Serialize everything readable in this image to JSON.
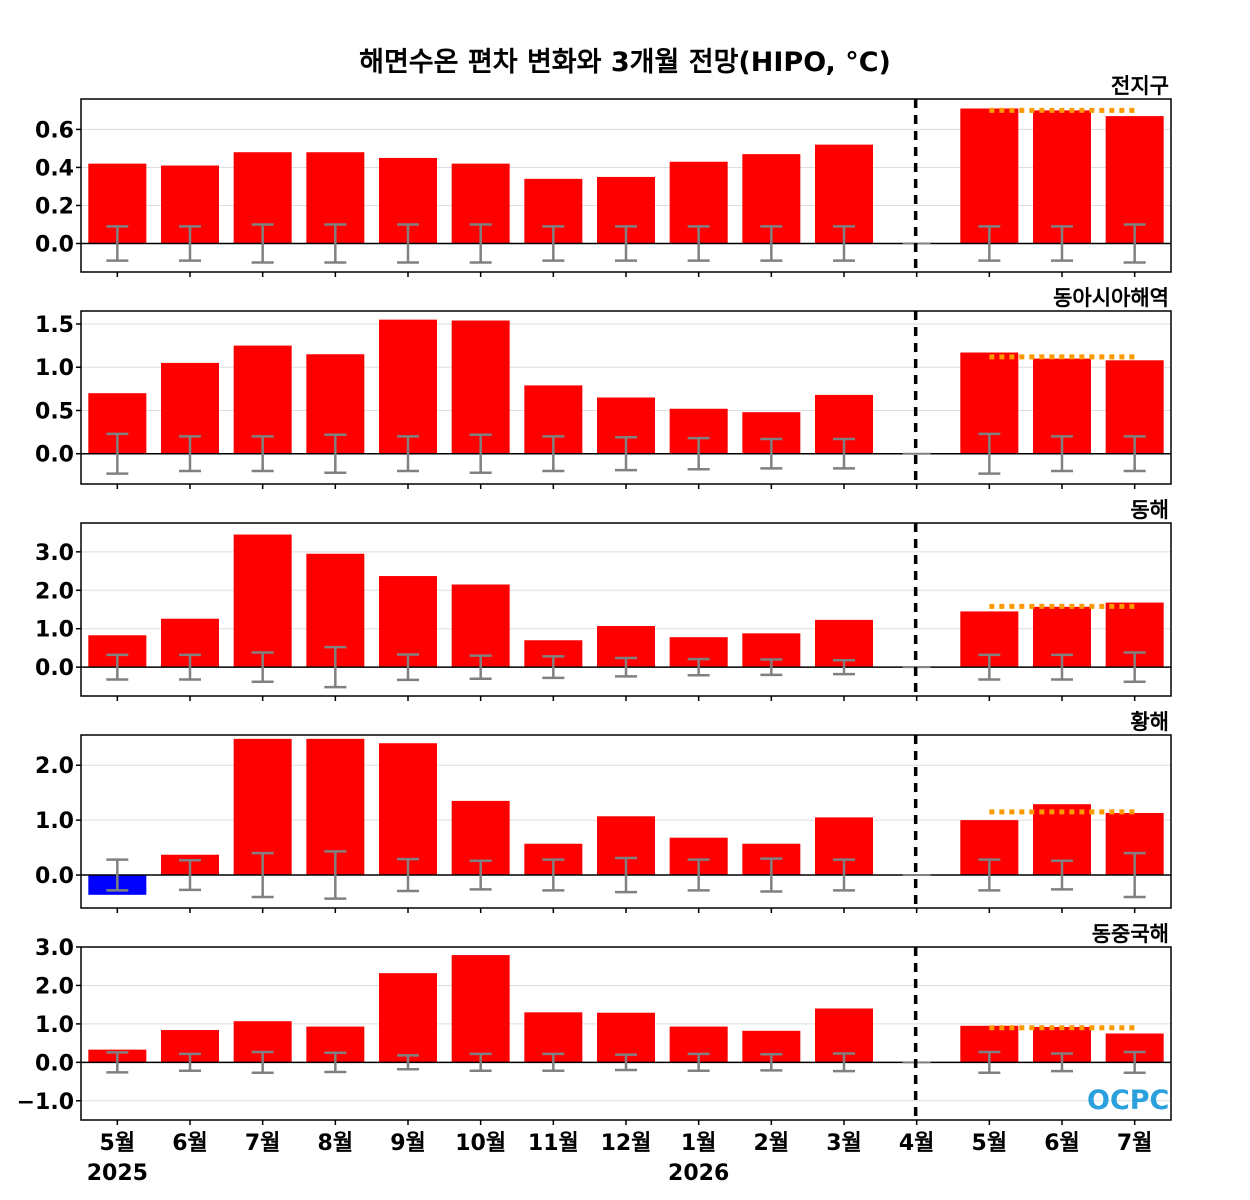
{
  "title": "해면수온 편차 변화와 3개월 전망(HIPO, °C)",
  "logo_text": "OCPC",
  "colors": {
    "positive": "#ff0000",
    "negative": "#0000ff",
    "error_bar": "#808080",
    "outlook_line": "#ff9900",
    "divider": "#000000",
    "grid": "#dddddd"
  },
  "chart_data": {
    "type": "bar",
    "categories": [
      "5월",
      "6월",
      "7월",
      "8월",
      "9월",
      "10월",
      "11월",
      "12월",
      "1월",
      "2월",
      "3월",
      "4월",
      "5월",
      "6월",
      "7월"
    ],
    "year_labels": [
      {
        "index": 0,
        "label": "2025"
      },
      {
        "index": 8,
        "label": "2026"
      }
    ],
    "forecast_divider_index": 11,
    "outlook_start_index": 12,
    "grid": true,
    "panels": [
      {
        "title": "전지구",
        "ylim": [
          -0.15,
          0.76
        ],
        "yticks": [
          0.0,
          0.2,
          0.4,
          0.6
        ],
        "ytick_labels": [
          "0.0",
          "0.2",
          "0.4",
          "0.6"
        ],
        "values": [
          0.42,
          0.41,
          0.48,
          0.48,
          0.45,
          0.42,
          0.34,
          0.35,
          0.43,
          0.47,
          0.52,
          0.0,
          0.71,
          0.7,
          0.67
        ],
        "error": [
          0.09,
          0.09,
          0.1,
          0.1,
          0.1,
          0.1,
          0.09,
          0.09,
          0.09,
          0.09,
          0.09,
          0.0,
          0.09,
          0.09,
          0.1
        ],
        "outlook_mean": 0.7
      },
      {
        "title": "동아시아해역",
        "ylim": [
          -0.35,
          1.65
        ],
        "yticks": [
          0.0,
          0.5,
          1.0,
          1.5
        ],
        "ytick_labels": [
          "0.0",
          "0.5",
          "1.0",
          "1.5"
        ],
        "values": [
          0.7,
          1.05,
          1.25,
          1.15,
          1.55,
          1.54,
          0.79,
          0.65,
          0.52,
          0.48,
          0.68,
          0.0,
          1.17,
          1.1,
          1.08
        ],
        "error": [
          0.23,
          0.2,
          0.2,
          0.22,
          0.2,
          0.22,
          0.2,
          0.19,
          0.18,
          0.17,
          0.17,
          0.0,
          0.23,
          0.2,
          0.2
        ],
        "outlook_mean": 1.12
      },
      {
        "title": "동해",
        "ylim": [
          -0.75,
          3.75
        ],
        "yticks": [
          0.0,
          1.0,
          2.0,
          3.0
        ],
        "ytick_labels": [
          "0.0",
          "1.0",
          "2.0",
          "3.0"
        ],
        "values": [
          0.83,
          1.26,
          3.45,
          2.95,
          2.37,
          2.15,
          0.7,
          1.07,
          0.78,
          0.88,
          1.23,
          0.0,
          1.45,
          1.57,
          1.68
        ],
        "error": [
          0.32,
          0.32,
          0.38,
          0.52,
          0.33,
          0.3,
          0.28,
          0.24,
          0.21,
          0.2,
          0.18,
          0.0,
          0.32,
          0.32,
          0.38
        ],
        "outlook_mean": 1.58
      },
      {
        "title": "황해",
        "ylim": [
          -0.6,
          2.55
        ],
        "yticks": [
          0.0,
          1.0,
          2.0
        ],
        "ytick_labels": [
          "0.0",
          "1.0",
          "2.0"
        ],
        "values": [
          -0.36,
          0.37,
          2.48,
          2.48,
          2.4,
          1.35,
          0.57,
          1.07,
          0.68,
          0.57,
          1.05,
          0.0,
          1.0,
          1.29,
          1.13
        ],
        "error": [
          0.28,
          0.27,
          0.4,
          0.43,
          0.29,
          0.26,
          0.28,
          0.31,
          0.28,
          0.3,
          0.28,
          0.0,
          0.28,
          0.26,
          0.4
        ],
        "outlook_mean": 1.15
      },
      {
        "title": "동중국해",
        "ylim": [
          -1.5,
          3.0
        ],
        "yticks": [
          -1.0,
          0.0,
          1.0,
          2.0,
          3.0
        ],
        "ytick_labels": [
          "−1.0",
          "0.0",
          "1.0",
          "2.0",
          "3.0"
        ],
        "values": [
          0.33,
          0.84,
          1.07,
          0.93,
          2.32,
          2.79,
          1.3,
          1.29,
          0.93,
          0.82,
          1.4,
          0.0,
          0.95,
          0.92,
          0.75
        ],
        "error": [
          0.26,
          0.22,
          0.27,
          0.25,
          0.18,
          0.22,
          0.22,
          0.2,
          0.22,
          0.21,
          0.23,
          0.0,
          0.27,
          0.23,
          0.27
        ],
        "outlook_mean": 0.9
      }
    ]
  }
}
